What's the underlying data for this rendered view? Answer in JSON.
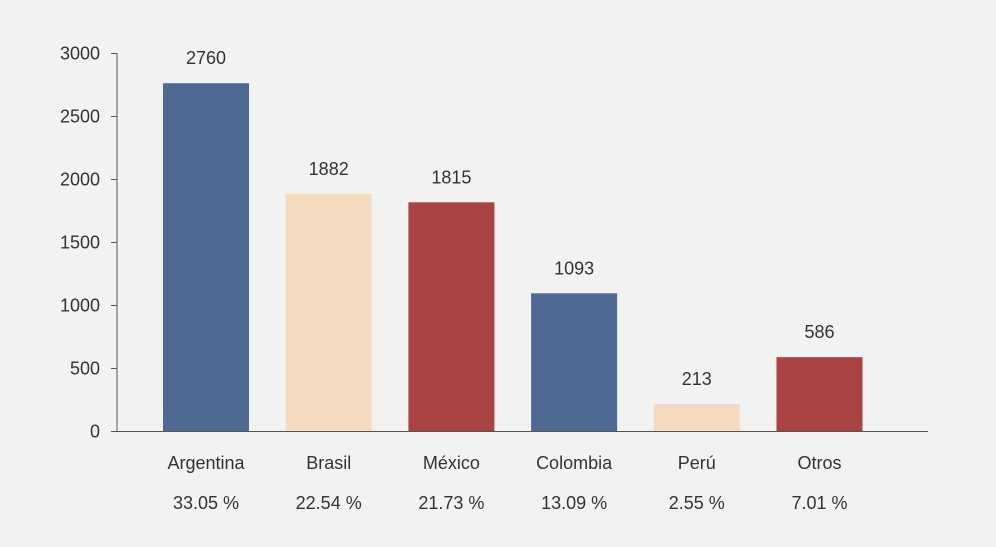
{
  "chart_data": {
    "type": "bar",
    "categories": [
      "Argentina",
      "Brasil",
      "México",
      "Colombia",
      "Perú",
      "Otros"
    ],
    "values": [
      2760,
      1882,
      1815,
      1093,
      213,
      586
    ],
    "shares": [
      "33.05 %",
      "22.54 %",
      "21.73 %",
      "13.09 %",
      "2.55 %",
      "7.01 %"
    ],
    "colors": [
      "#4e6a94",
      "#f4dbc0",
      "#a94344",
      "#4e6a94",
      "#f4dbc0",
      "#a94344"
    ],
    "ylim": [
      0,
      3000
    ],
    "yticks": [
      0,
      500,
      1000,
      1500,
      2000,
      2500,
      3000
    ],
    "grid": false,
    "title": "",
    "xlabel": "",
    "ylabel": ""
  }
}
